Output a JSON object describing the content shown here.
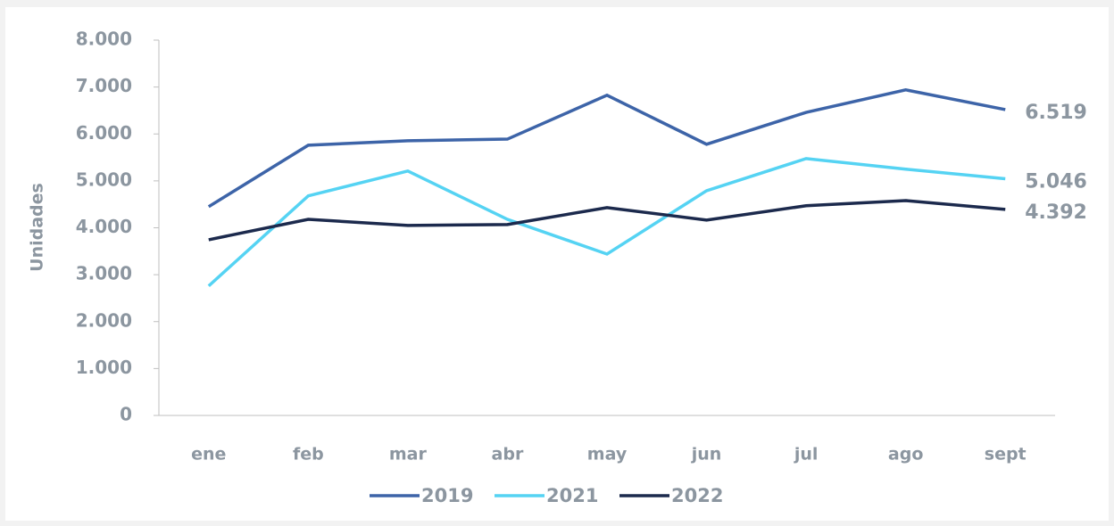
{
  "chart_data": {
    "type": "line",
    "y_label": "Unidades",
    "categories": [
      "ene",
      "feb",
      "mar",
      "abr",
      "may",
      "jun",
      "jul",
      "ago",
      "sept"
    ],
    "series": [
      {
        "name": "2019",
        "color": "#3d64a8",
        "values": [
          4450,
          5760,
          5855,
          5890,
          6825,
          5780,
          6460,
          6940,
          6519
        ],
        "value_labels": [
          null,
          null,
          null,
          null,
          null,
          null,
          null,
          null,
          "6.519"
        ]
      },
      {
        "name": "2021",
        "color": "#55d3f3",
        "values": [
          2760,
          4680,
          5210,
          4180,
          3440,
          4790,
          5475,
          5250,
          5046
        ],
        "value_labels": [
          null,
          null,
          null,
          null,
          null,
          null,
          null,
          null,
          "5.046"
        ]
      },
      {
        "name": "2022",
        "color": "#1c2a4d",
        "values": [
          3745,
          4180,
          4050,
          4070,
          4430,
          4165,
          4470,
          4580,
          4392
        ],
        "value_labels": [
          null,
          null,
          null,
          null,
          null,
          null,
          null,
          null,
          "4.392"
        ]
      }
    ],
    "ylim": [
      0,
      8000
    ],
    "yticks": [
      0,
      {
        "value": 1000,
        "label": "1.000"
      },
      {
        "value": 2000,
        "label": "2.000"
      },
      {
        "value": 3000,
        "label": "3.000"
      },
      {
        "value": 4000,
        "label": "4.000"
      },
      {
        "value": 5000,
        "label": "5.000"
      },
      {
        "value": 6000,
        "label": "6.000"
      },
      {
        "value": 7000,
        "label": "7.000"
      },
      {
        "value": 8000,
        "label": "8.000"
      }
    ],
    "grid": false,
    "legend": "bottom"
  }
}
